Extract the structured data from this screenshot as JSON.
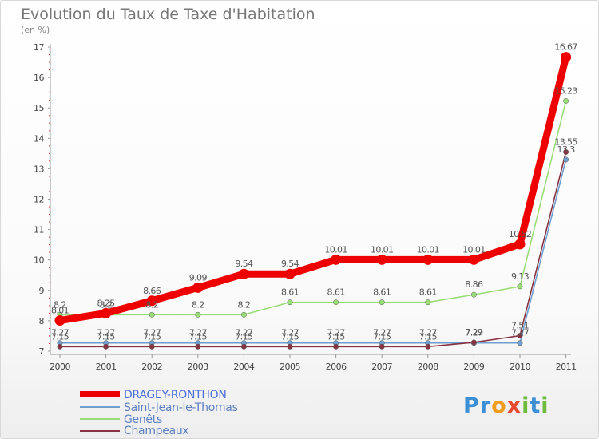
{
  "chart_data": {
    "type": "line",
    "title": "Evolution du Taux de Taxe d'Habitation",
    "subtitle": "(en %)",
    "xlabel": "",
    "ylabel": "",
    "x": [
      "2000",
      "2001",
      "2002",
      "2003",
      "2004",
      "2005",
      "2006",
      "2007",
      "2008",
      "2009",
      "2010",
      "2011"
    ],
    "yticks": [
      "7",
      "8",
      "9",
      "10",
      "11",
      "12",
      "13",
      "14",
      "15",
      "16",
      "17"
    ],
    "ylim": [
      7,
      17
    ],
    "grid": false,
    "legend_position": "bottom-left",
    "series": [
      {
        "name": "DRAGEY-RONTHON",
        "color": "#ee0000",
        "values": [
          8.01,
          8.25,
          8.66,
          9.09,
          9.54,
          9.54,
          10.01,
          10.01,
          10.01,
          10.01,
          10.52,
          16.67
        ],
        "labels": [
          "8.01",
          "8.25",
          "8.66",
          "9.09",
          "9.54",
          "9.54",
          "10.01",
          "10.01",
          "10.01",
          "10.01",
          "10.52",
          "16.67"
        ]
      },
      {
        "name": "Saint-Jean-le-Thomas",
        "color": "#6f9fce",
        "values": [
          7.27,
          7.27,
          7.27,
          7.27,
          7.27,
          7.27,
          7.27,
          7.27,
          7.27,
          7.27,
          7.27,
          13.3
        ],
        "labels": [
          "7.27",
          "7.27",
          "7.27",
          "7.27",
          "7.27",
          "7.27",
          "7.27",
          "7.27",
          "7.27",
          "7.27",
          "7.27",
          "13.3"
        ]
      },
      {
        "name": "Genêts",
        "color": "#99dd77",
        "values": [
          8.2,
          8.2,
          8.2,
          8.2,
          8.2,
          8.61,
          8.61,
          8.61,
          8.61,
          8.86,
          9.13,
          15.23
        ],
        "labels": [
          "8.2",
          "8.2",
          "8.2",
          "8.2",
          "8.2",
          "8.61",
          "8.61",
          "8.61",
          "8.61",
          "8.86",
          "9.13",
          "15.23"
        ]
      },
      {
        "name": "Champeaux",
        "color": "#883344",
        "values": [
          7.15,
          7.15,
          7.15,
          7.15,
          7.15,
          7.15,
          7.15,
          7.15,
          7.15,
          7.29,
          7.51,
          13.55
        ],
        "labels": [
          "7.15",
          "7.15",
          "7.15",
          "7.15",
          "7.15",
          "7.15",
          "7.15",
          "7.15",
          "7.15",
          "7.29",
          "7.51",
          "13.55"
        ]
      }
    ]
  },
  "logo": {
    "letters": [
      {
        "char": "P",
        "color": "#3b8fd4"
      },
      {
        "char": "r",
        "color": "#3b8fd4"
      },
      {
        "char": "o",
        "color": "#f29b1d"
      },
      {
        "char": "x",
        "color": "#e8492f"
      },
      {
        "char": "i",
        "color": "#6dbb3c"
      },
      {
        "char": "t",
        "color": "#3b8fd4"
      },
      {
        "char": "i",
        "color": "#6dbb3c"
      }
    ]
  }
}
